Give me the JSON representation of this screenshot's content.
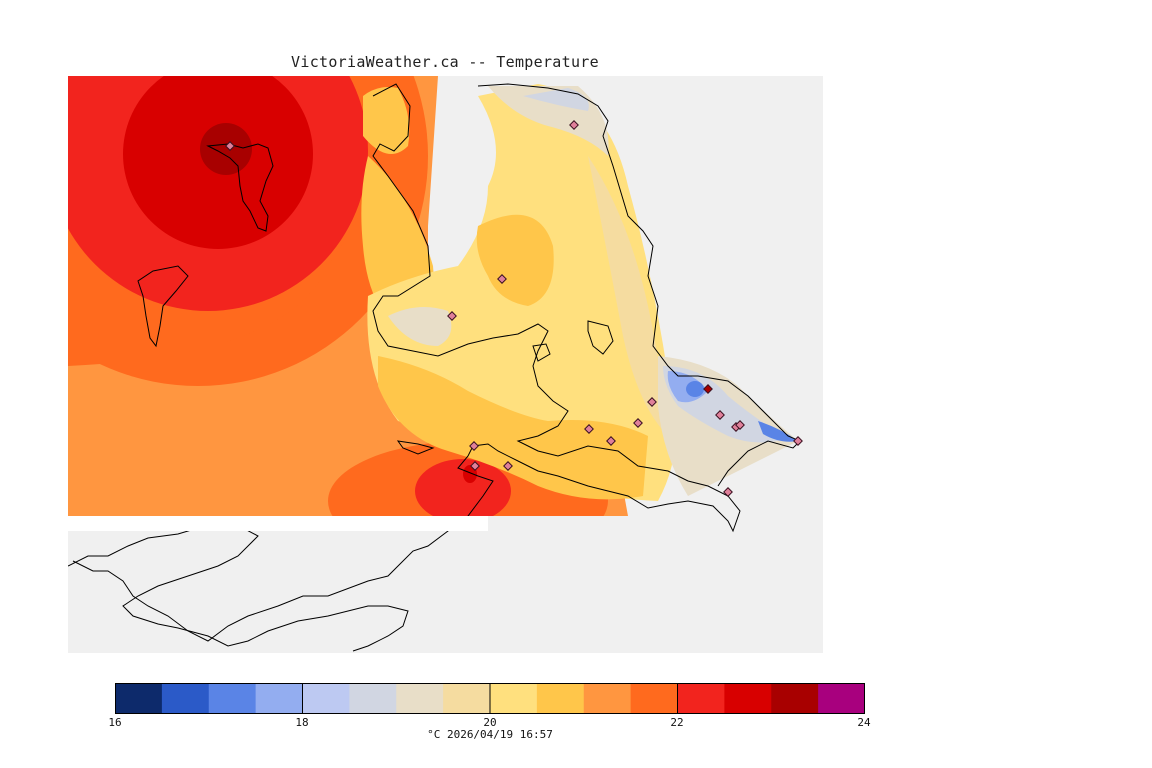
{
  "title": "VictoriaWeather.ca -- Temperature",
  "caption": "°C 2026/04/19 16:57",
  "legend": {
    "ticks": [
      "16",
      "18",
      "20",
      "22",
      "24"
    ],
    "min": 16,
    "max": 24,
    "colors": [
      "#0d2a6b",
      "#2b5ac8",
      "#5a84e6",
      "#93adf0",
      "#bdc9f2",
      "#d1d6e2",
      "#e8dec8",
      "#f5dca0",
      "#ffe07e",
      "#ffc64a",
      "#ff9640",
      "#ff6a1e",
      "#f2241e",
      "#d80000",
      "#a80000",
      "#a8007e"
    ]
  },
  "map": {
    "background_color": "#f0f0f0",
    "land_color": "#ffffff",
    "station_marker_color": "#e0809a"
  }
}
